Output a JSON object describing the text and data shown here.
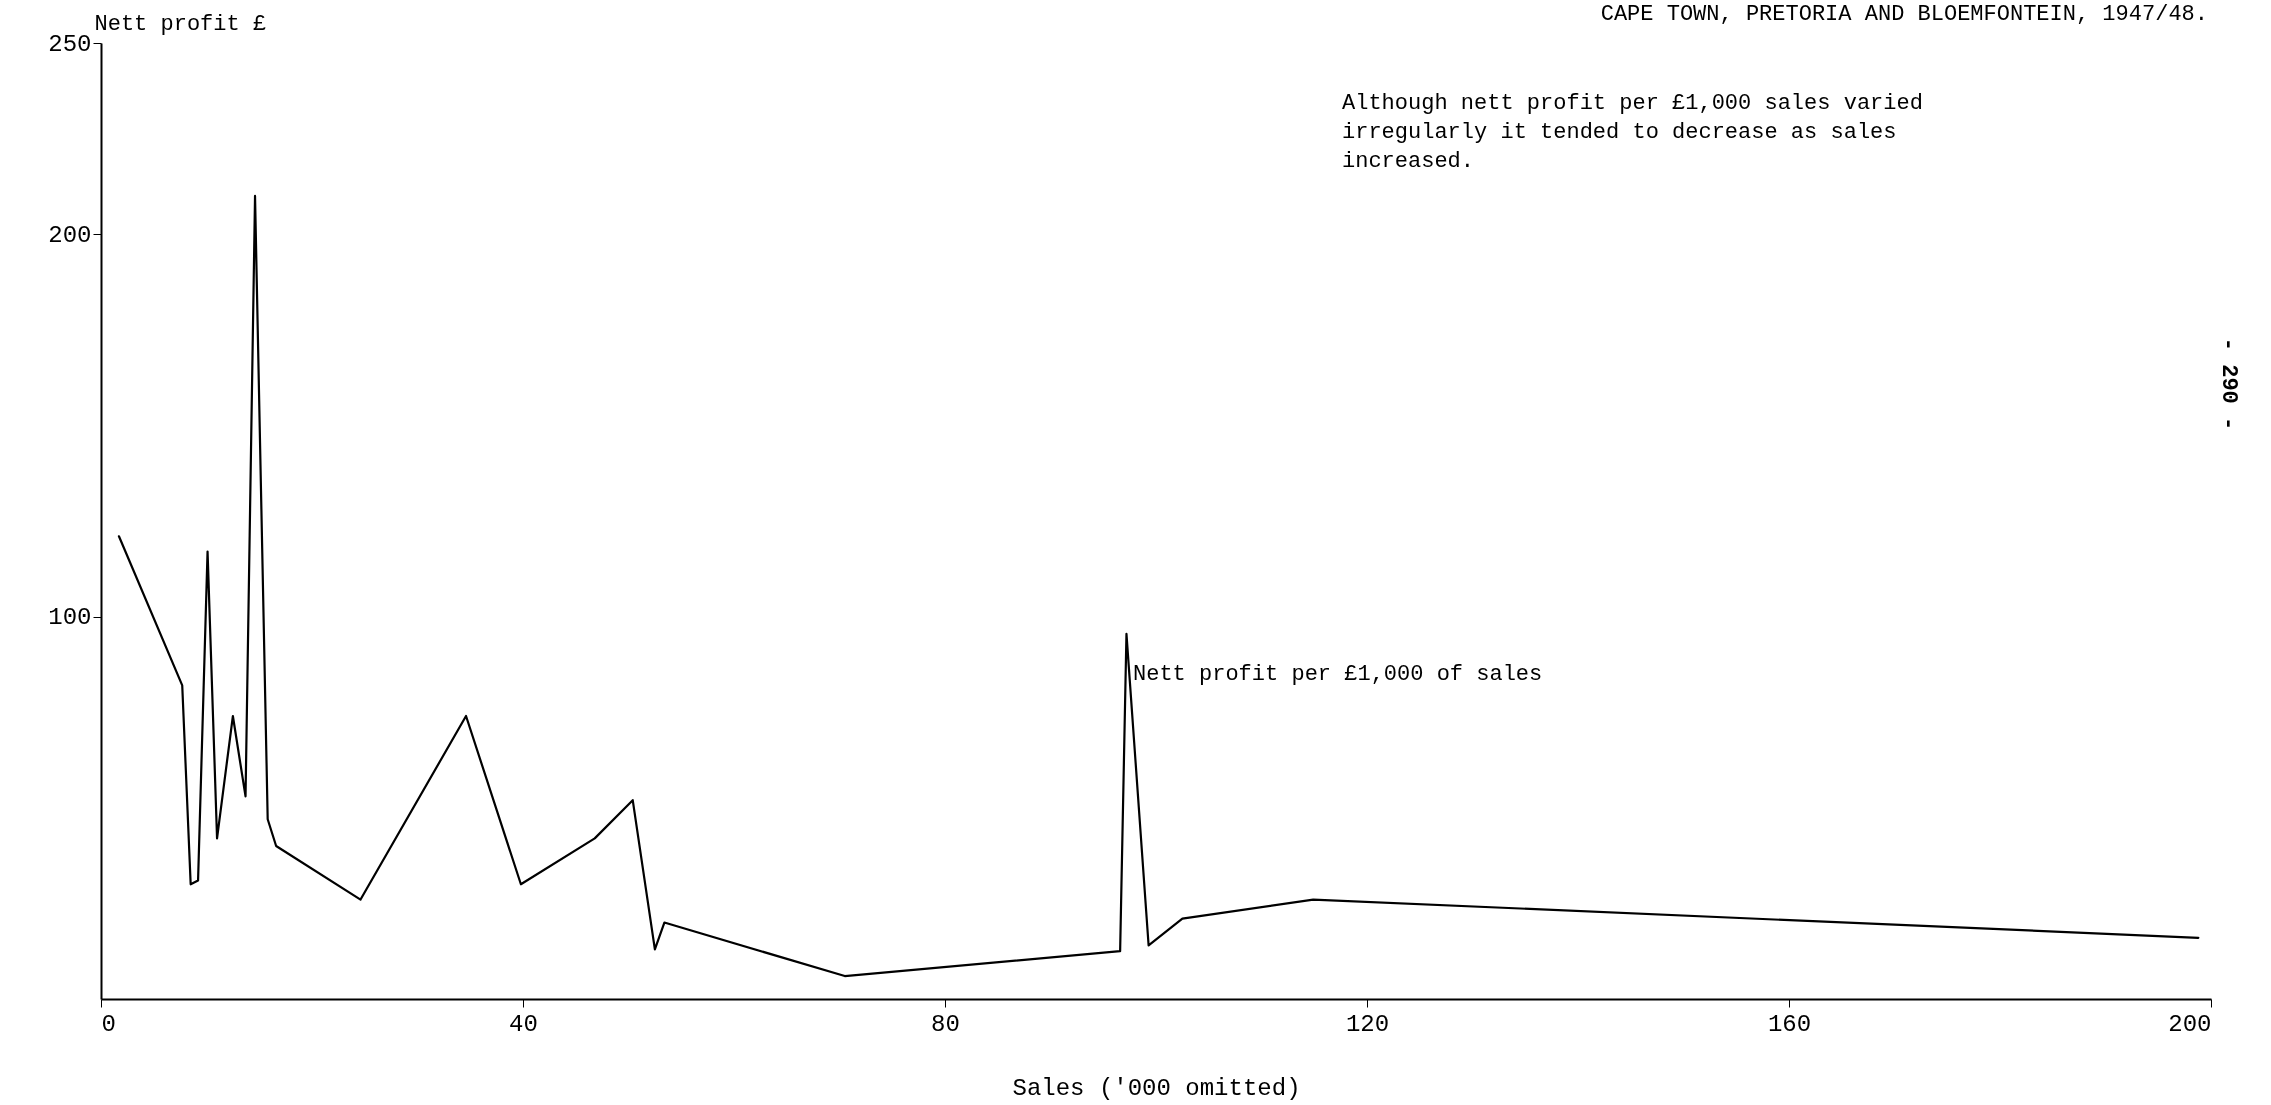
{
  "chart_data": {
    "type": "line",
    "title": "CAPE TOWN, PRETORIA AND BLOEMFONTEIN, 1947/48.",
    "subtitle": "Although nett profit per £1,000 sales varied irregularly it tended to decrease as sales increased.",
    "xlabel": "Sales ('000 omitted)",
    "ylabel": "Nett profit  £",
    "x": [
      1.7,
      7.7,
      8.5,
      9.2,
      10.1,
      11.0,
      12.5,
      13.7,
      14.6,
      15.8,
      16.6,
      24.6,
      34.6,
      39.8,
      46.8,
      50.4,
      52.5,
      53.4,
      70.5,
      96.6,
      97.2,
      99.3,
      102.5,
      114.9,
      198.8
    ],
    "series": [
      {
        "name": "Nett profit per £1,000 of sales",
        "color": "#000000",
        "values": [
          121,
          82,
          30,
          31,
          117,
          42,
          74,
          53,
          210,
          47,
          40,
          26,
          74,
          30,
          42,
          52,
          13,
          20,
          6,
          12.5,
          95.5,
          14,
          21,
          26,
          16
        ]
      }
    ],
    "xlim": [
      0,
      200
    ],
    "xticks": [
      0,
      40,
      80,
      120,
      160,
      200
    ],
    "ylim": [
      0,
      250
    ],
    "yticks": [
      100,
      200,
      250
    ],
    "grid": false,
    "legend": false,
    "marker": "none",
    "line_style": "solid",
    "annotations": [
      "- 290 -"
    ]
  }
}
